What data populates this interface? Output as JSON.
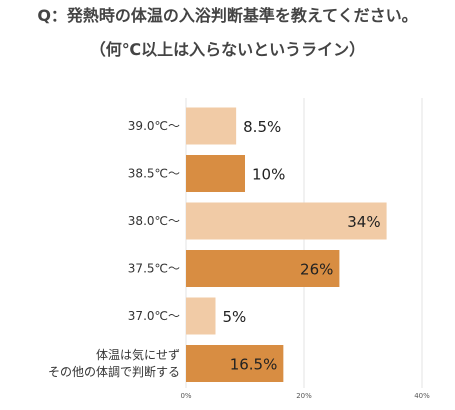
{
  "header": {
    "title_line1": "Q：発熱時の体温の入浴判断基準を教えてください。",
    "title_line2": "（何℃以上は入らないというライン）"
  },
  "chart_data": {
    "type": "bar",
    "orientation": "horizontal",
    "categories": [
      [
        "39.0℃～"
      ],
      [
        "38.5℃～"
      ],
      [
        "38.0℃～"
      ],
      [
        "37.5℃～"
      ],
      [
        "37.0℃～"
      ],
      [
        "体温は気にせず",
        "その他の体調で判断する"
      ]
    ],
    "values": [
      8.5,
      10,
      34,
      26,
      5,
      16.5
    ],
    "value_labels": [
      "8.5%",
      "10%",
      "34%",
      "26%",
      "5%",
      "16.5%"
    ],
    "xlim": [
      0,
      40
    ],
    "xticks": [
      0,
      20,
      40
    ],
    "xtick_labels": [
      "0%",
      "20%",
      "40%"
    ],
    "grid": true,
    "colors": {
      "light": "#f1cba6",
      "dark": "#d88d42",
      "grid": "#e3e3e3"
    },
    "bar_color_keys": [
      "light",
      "dark",
      "light",
      "dark",
      "light",
      "dark"
    ]
  }
}
